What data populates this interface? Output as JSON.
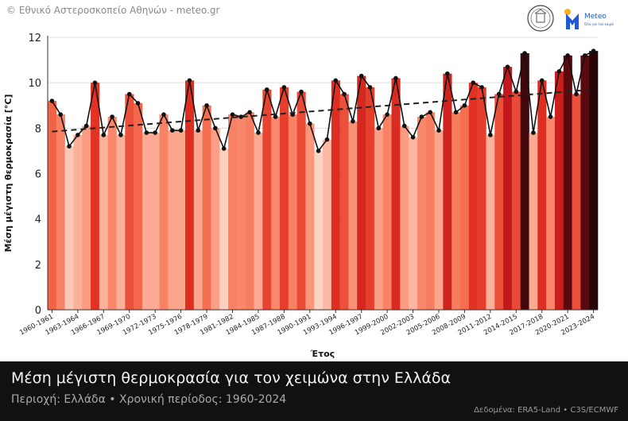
{
  "header": {
    "credit": "© Εθνικό Αστεροσκοπείο Αθηνών - meteo.gr",
    "logo_text": "Meteo",
    "logo_tagline": "Όλα για τον καιρό"
  },
  "footer": {
    "title": "Μέση μέγιστη θερμοκρασία για τον χειμώνα στην Ελλάδα",
    "subtitle": "Περιοχή: Ελλάδα • Χρονική περίοδος: 1960-2024",
    "source": "Δεδομένα: ERA5-Land • C3S/ECMWF"
  },
  "colors": {
    "line": "#111111",
    "trend": "#222222",
    "footer_bg": "#111111"
  },
  "chart_data": {
    "type": "bar",
    "title": "",
    "xlabel": "Έτος",
    "ylabel": "Μέση μέγιστη θερμοκρασία [°C]",
    "ylim": [
      0,
      12
    ],
    "yticks": [
      0,
      2,
      4,
      6,
      8,
      10,
      12
    ],
    "grid": true,
    "categories": [
      "1960-1961",
      "1961-1962",
      "1962-1963",
      "1963-1964",
      "1964-1965",
      "1965-1966",
      "1966-1967",
      "1967-1968",
      "1968-1969",
      "1969-1970",
      "1970-1971",
      "1971-1972",
      "1972-1973",
      "1973-1974",
      "1974-1975",
      "1975-1976",
      "1976-1977",
      "1977-1978",
      "1978-1979",
      "1979-1980",
      "1980-1981",
      "1981-1982",
      "1982-1983",
      "1983-1984",
      "1984-1985",
      "1985-1986",
      "1986-1987",
      "1987-1988",
      "1988-1989",
      "1989-1990",
      "1990-1991",
      "1991-1992",
      "1992-1993",
      "1993-1994",
      "1994-1995",
      "1995-1996",
      "1996-1997",
      "1997-1998",
      "1998-1999",
      "1999-2000",
      "2000-2001",
      "2001-2002",
      "2002-2003",
      "2003-2004",
      "2004-2005",
      "2005-2006",
      "2006-2007",
      "2007-2008",
      "2008-2009",
      "2009-2010",
      "2010-2011",
      "2011-2012",
      "2012-2013",
      "2013-2014",
      "2014-2015",
      "2015-2016",
      "2016-2017",
      "2017-2018",
      "2018-2019",
      "2019-2020",
      "2020-2021",
      "2021-2022",
      "2022-2023",
      "2023-2024"
    ],
    "tick_labels": [
      "1960-1961",
      "1963-1964",
      "1966-1967",
      "1969-1970",
      "1972-1973",
      "1975-1976",
      "1978-1979",
      "1981-1982",
      "1984-1985",
      "1987-1988",
      "1990-1991",
      "1993-1994",
      "1996-1997",
      "1999-2000",
      "2002-2003",
      "2005-2006",
      "2008-2009",
      "2011-2012",
      "2014-2015",
      "2017-2018",
      "2020-2021",
      "2023-2024"
    ],
    "values": [
      9.2,
      8.6,
      7.2,
      7.7,
      8.1,
      10.0,
      7.7,
      8.5,
      7.7,
      9.5,
      9.1,
      7.8,
      7.8,
      8.6,
      7.9,
      7.9,
      10.1,
      7.9,
      9.0,
      8.0,
      7.1,
      8.6,
      8.5,
      8.7,
      7.8,
      9.7,
      8.5,
      9.8,
      8.6,
      9.6,
      8.2,
      7.0,
      7.5,
      10.1,
      9.5,
      8.3,
      10.3,
      9.8,
      8.0,
      8.6,
      10.2,
      8.1,
      7.6,
      8.5,
      8.7,
      7.9,
      10.4,
      8.7,
      9.0,
      10.0,
      9.8,
      7.7,
      9.5,
      10.7,
      9.6,
      11.3,
      7.8,
      10.1,
      8.5,
      10.5,
      11.2,
      9.5,
      11.2,
      11.4
    ],
    "trend": {
      "start": 7.85,
      "end": 9.7
    }
  }
}
